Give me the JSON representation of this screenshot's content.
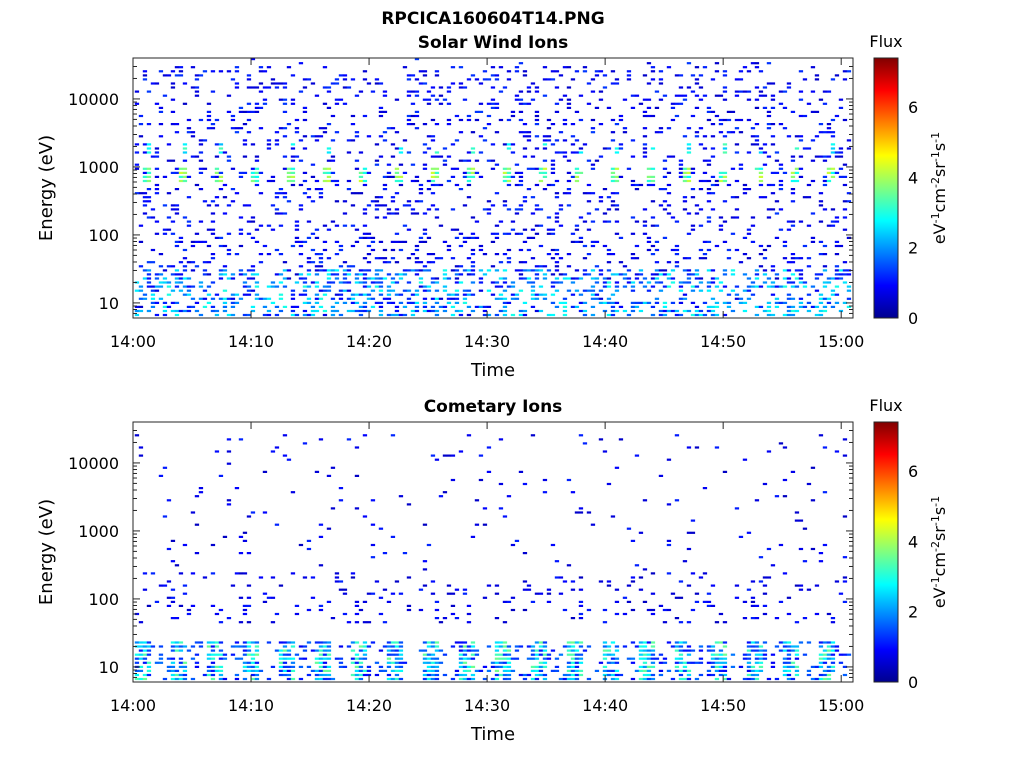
{
  "figure": {
    "title": "RPCICA160604T14.PNG"
  },
  "chart_data": [
    {
      "type": "heatmap",
      "title": "Solar Wind Ions",
      "xlabel": "Time",
      "ylabel": "Energy (eV)",
      "x_ticks": [
        "14:00",
        "14:10",
        "14:20",
        "14:30",
        "14:40",
        "14:50",
        "15:00"
      ],
      "y_ticks": [
        "10",
        "100",
        "1000",
        "10000"
      ],
      "y_scale": "log",
      "y_range_eV": [
        6,
        40000
      ],
      "x_range": [
        "14:00",
        "15:01"
      ],
      "colorbar": {
        "title": "Flux",
        "label": "eV-1cm-2sr-1s-1",
        "ticks": [
          "0",
          "2",
          "4",
          "6"
        ],
        "range": [
          0,
          7.4
        ],
        "colormap": "jet"
      },
      "features": {
        "solar_wind_beam_energy_eV": 800,
        "beam_flux_typical": 3.8,
        "background_flux_typical": 0.8,
        "low_energy_streaks_eV": [
          6,
          35
        ]
      }
    },
    {
      "type": "heatmap",
      "title": "Cometary Ions",
      "xlabel": "Time",
      "ylabel": "Energy (eV)",
      "x_ticks": [
        "14:00",
        "14:10",
        "14:20",
        "14:30",
        "14:40",
        "14:50",
        "15:00"
      ],
      "y_ticks": [
        "10",
        "100",
        "1000",
        "10000"
      ],
      "y_scale": "log",
      "y_range_eV": [
        6,
        40000
      ],
      "x_range": [
        "14:00",
        "15:01"
      ],
      "colorbar": {
        "title": "Flux",
        "label": "eV-1cm-2sr-1s-1",
        "ticks": [
          "0",
          "2",
          "4",
          "6"
        ],
        "range": [
          0,
          7.4
        ],
        "colormap": "jet"
      },
      "features": {
        "low_energy_band_eV": [
          6,
          25
        ],
        "band_flux_peak": 3.6,
        "scatter_energy_eV": [
          40,
          20000
        ],
        "background_flux_typical": 0.8
      }
    }
  ]
}
